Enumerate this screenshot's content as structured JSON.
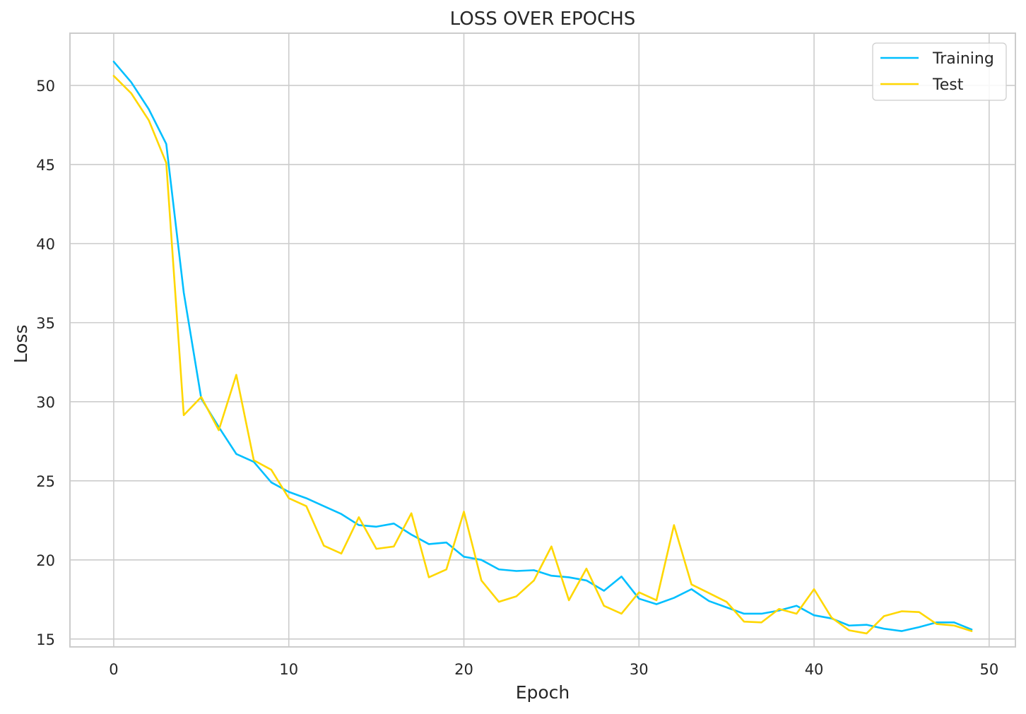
{
  "chart_data": {
    "type": "line",
    "title": "LOSS OVER EPOCHS",
    "xlabel": "Epoch",
    "ylabel": "Loss",
    "xlim": [
      -2.5,
      51.5
    ],
    "ylim": [
      14.5,
      53.3
    ],
    "xticks": [
      0,
      10,
      20,
      30,
      40,
      50
    ],
    "yticks": [
      15,
      20,
      25,
      30,
      35,
      40,
      45,
      50
    ],
    "grid": true,
    "legend_position": "top-right",
    "series": [
      {
        "name": "Training",
        "color": "#00bfff",
        "x": [
          0,
          1,
          2,
          3,
          4,
          5,
          6,
          7,
          8,
          9,
          10,
          11,
          12,
          13,
          14,
          15,
          16,
          17,
          18,
          19,
          20,
          21,
          22,
          23,
          24,
          25,
          26,
          27,
          28,
          29,
          30,
          31,
          32,
          33,
          34,
          35,
          36,
          37,
          38,
          39,
          40,
          41,
          42,
          43,
          44,
          45,
          46,
          47,
          48,
          49
        ],
        "values": [
          51.5,
          50.2,
          48.5,
          46.3,
          36.9,
          30.2,
          28.4,
          26.7,
          26.2,
          24.9,
          24.3,
          23.9,
          23.4,
          22.9,
          22.2,
          22.1,
          22.3,
          21.6,
          21.0,
          21.1,
          20.2,
          20.0,
          19.4,
          19.3,
          19.35,
          19.0,
          18.9,
          18.7,
          18.05,
          18.95,
          17.55,
          17.2,
          17.6,
          18.15,
          17.4,
          17.0,
          16.6,
          16.6,
          16.8,
          17.1,
          16.5,
          16.3,
          15.85,
          15.9,
          15.65,
          15.5,
          15.75,
          16.05,
          16.05,
          15.6
        ]
      },
      {
        "name": "Test",
        "color": "#ffd700",
        "x": [
          0,
          1,
          2,
          3,
          4,
          5,
          6,
          7,
          8,
          9,
          10,
          11,
          12,
          13,
          14,
          15,
          16,
          17,
          18,
          19,
          20,
          21,
          22,
          23,
          24,
          25,
          26,
          27,
          28,
          29,
          30,
          31,
          32,
          33,
          34,
          35,
          36,
          37,
          38,
          39,
          40,
          41,
          42,
          43,
          44,
          45,
          46,
          47,
          48,
          49
        ],
        "values": [
          50.6,
          49.5,
          47.8,
          45.1,
          29.15,
          30.3,
          28.2,
          31.7,
          26.3,
          25.7,
          23.9,
          23.4,
          20.9,
          20.4,
          22.7,
          20.7,
          20.85,
          22.95,
          18.9,
          19.4,
          23.05,
          18.7,
          17.35,
          17.7,
          18.7,
          20.85,
          17.45,
          19.45,
          17.1,
          16.6,
          17.95,
          17.45,
          22.2,
          18.45,
          17.9,
          17.35,
          16.1,
          16.05,
          16.9,
          16.6,
          18.15,
          16.35,
          15.55,
          15.35,
          16.45,
          16.75,
          16.7,
          15.95,
          15.85,
          15.5
        ]
      }
    ]
  }
}
